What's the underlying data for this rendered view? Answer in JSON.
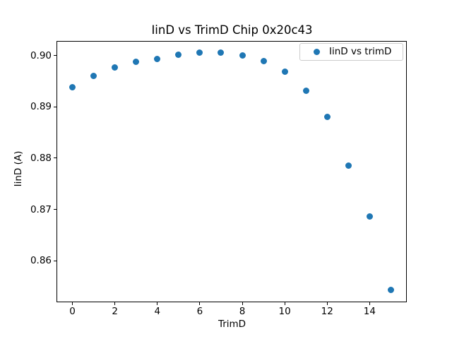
{
  "figure": {
    "background": "#ffffff"
  },
  "style": {
    "marker_color": "#1f77b4",
    "spine_color": "#000000",
    "legend_border_color": "#cccccc",
    "text_color": "#000000"
  },
  "chart_data": {
    "type": "scatter",
    "title": "IinD vs TrimD Chip 0x20c43",
    "xlabel": "TrimD",
    "ylabel": "IinD (A)",
    "grid": false,
    "legend": {
      "position": "upper right",
      "entries": [
        {
          "label": "IinD vs trimD",
          "marker": "circle",
          "color": "#1f77b4"
        }
      ]
    },
    "series": [
      {
        "name": "IinD vs trimD",
        "marker": "circle",
        "color": "#1f77b4",
        "x": [
          0,
          1,
          2,
          3,
          4,
          5,
          6,
          7,
          8,
          9,
          10,
          11,
          12,
          13,
          14,
          15
        ],
        "y": [
          0.8938,
          0.896,
          0.8977,
          0.8988,
          0.8993,
          0.9001,
          0.9005,
          0.9006,
          0.9,
          0.8989,
          0.8969,
          0.8931,
          0.8881,
          0.8786,
          0.8686,
          0.8543
        ]
      }
    ],
    "xlim": [
      -0.75,
      15.75
    ],
    "ylim": [
      0.852,
      0.9029
    ],
    "xticks": [
      0,
      2,
      4,
      6,
      8,
      10,
      12,
      14
    ],
    "xtick_labels": [
      "0",
      "2",
      "4",
      "6",
      "8",
      "10",
      "12",
      "14"
    ],
    "yticks": [
      0.86,
      0.87,
      0.88,
      0.89,
      0.9
    ],
    "ytick_labels": [
      "0.86",
      "0.87",
      "0.88",
      "0.89",
      "0.90"
    ]
  }
}
